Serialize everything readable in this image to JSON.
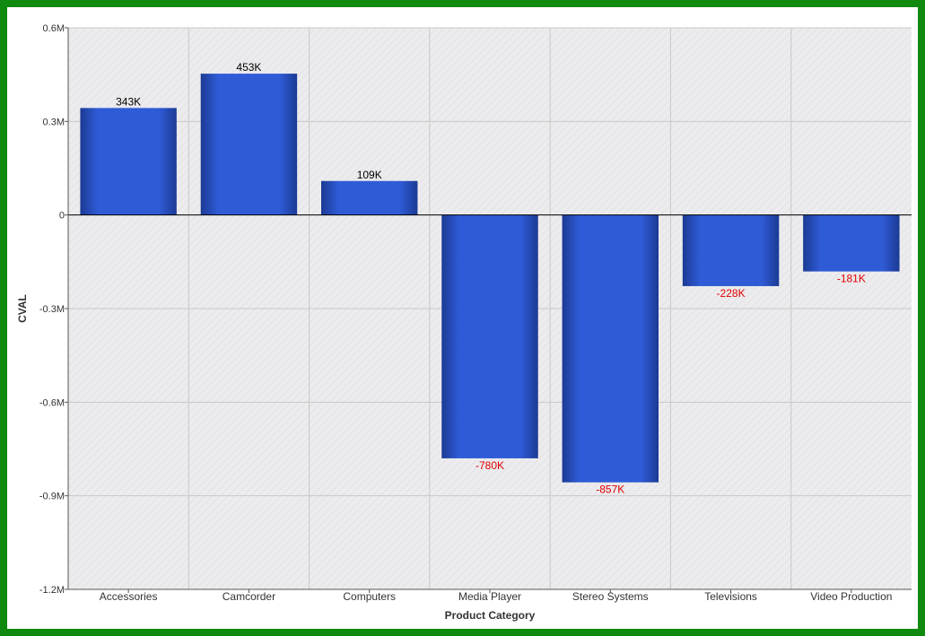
{
  "chart_data": {
    "type": "bar",
    "title": "",
    "xlabel": "Product Category",
    "ylabel": "CVAL",
    "ylim": [
      -1200000,
      600000
    ],
    "yticks": [
      {
        "value": 600000,
        "label": "0.6M"
      },
      {
        "value": 300000,
        "label": "0.3M"
      },
      {
        "value": 0,
        "label": "0"
      },
      {
        "value": -300000,
        "label": "-0.3M"
      },
      {
        "value": -600000,
        "label": "-0.6M"
      },
      {
        "value": -900000,
        "label": "-0.9M"
      },
      {
        "value": -1200000,
        "label": "-1.2M"
      }
    ],
    "categories": [
      "Accessories",
      "Camcorder",
      "Computers",
      "Media Player",
      "Stereo Systems",
      "Televisions",
      "Video Production"
    ],
    "values": [
      343000,
      453000,
      109000,
      -780000,
      -857000,
      -228000,
      -181000
    ],
    "data_labels": [
      "343K",
      "453K",
      "109K",
      "-780K",
      "-857K",
      "-228K",
      "-181K"
    ],
    "grid": true,
    "legend": "none",
    "colors": {
      "bar": "#2f5bd6",
      "bar_edge": "#1b3a94",
      "positive_label": "#000000",
      "negative_label": "#e00000",
      "plot_background": "#ebebeb",
      "grid": "#c8c8c8",
      "frame": "#0f8a0f"
    }
  }
}
